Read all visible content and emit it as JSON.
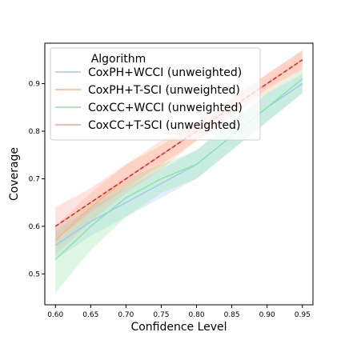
{
  "chart_data": {
    "type": "line",
    "title": "",
    "xlabel": "Confidence Level",
    "ylabel": "Coverage",
    "x": [
      0.6,
      0.65,
      0.7,
      0.75,
      0.8,
      0.85,
      0.9,
      0.95
    ],
    "xticks": [
      "0.60",
      "0.65",
      "0.70",
      "0.75",
      "0.80",
      "0.85",
      "0.90",
      "0.95"
    ],
    "yticks": [
      "0.5",
      "0.6",
      "0.7",
      "0.8",
      "0.9"
    ],
    "xlim": [
      0.585,
      0.965
    ],
    "ylim": [
      0.435,
      0.985
    ],
    "grid": false,
    "legend_title": "Algorithm",
    "legend_position": "top-left",
    "reference_line": {
      "x": [
        0.6,
        0.95
      ],
      "y": [
        0.6,
        0.95
      ],
      "color": "#d62728",
      "style": "dashed"
    },
    "series": [
      {
        "name": "CoxPH+WCCI (unweighted)",
        "color": "#a1c9f4",
        "values": [
          0.56,
          0.61,
          0.65,
          0.69,
          0.73,
          0.79,
          0.85,
          0.9
        ],
        "lower": [
          0.53,
          0.58,
          0.62,
          0.66,
          0.7,
          0.76,
          0.82,
          0.88
        ],
        "upper": [
          0.59,
          0.64,
          0.68,
          0.72,
          0.76,
          0.82,
          0.88,
          0.92
        ]
      },
      {
        "name": "CoxPH+T-SCI (unweighted)",
        "color": "#ffb482",
        "values": [
          0.57,
          0.64,
          0.7,
          0.75,
          0.8,
          0.85,
          0.9,
          0.95
        ],
        "lower": [
          0.54,
          0.61,
          0.67,
          0.72,
          0.78,
          0.83,
          0.88,
          0.93
        ],
        "upper": [
          0.6,
          0.67,
          0.73,
          0.78,
          0.82,
          0.87,
          0.92,
          0.97
        ]
      },
      {
        "name": "CoxCC+WCCI (unweighted)",
        "color": "#8de5a1",
        "values": [
          0.53,
          0.6,
          0.66,
          0.7,
          0.73,
          0.79,
          0.85,
          0.91
        ],
        "lower": [
          0.46,
          0.55,
          0.62,
          0.67,
          0.7,
          0.76,
          0.82,
          0.88
        ],
        "upper": [
          0.6,
          0.65,
          0.7,
          0.73,
          0.76,
          0.82,
          0.88,
          0.93
        ]
      },
      {
        "name": "CoxCC+T-SCI (unweighted)",
        "color": "#ff9f9b",
        "values": [
          0.6,
          0.65,
          0.7,
          0.75,
          0.8,
          0.85,
          0.9,
          0.95
        ],
        "lower": [
          0.57,
          0.63,
          0.68,
          0.73,
          0.78,
          0.83,
          0.89,
          0.93
        ],
        "upper": [
          0.64,
          0.68,
          0.73,
          0.77,
          0.82,
          0.87,
          0.92,
          0.97
        ]
      }
    ]
  }
}
